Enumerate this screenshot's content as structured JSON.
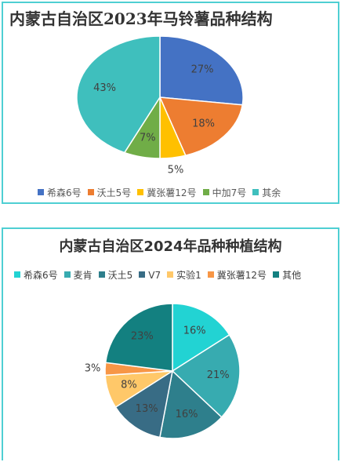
{
  "chart_data": [
    {
      "type": "pie",
      "title": "内蒙古自治区2023年马铃薯品种结构",
      "categories": [
        "希森6号",
        "沃土5号",
        "冀张薯12号",
        "中加7号",
        "其余"
      ],
      "values": [
        27,
        18,
        5,
        7,
        43
      ],
      "data_labels": [
        "27%",
        "18%",
        "5%",
        "7%",
        "43%"
      ],
      "colors": [
        "#4472c4",
        "#ed7d31",
        "#ffc000",
        "#70ad47",
        "#3fbfbd"
      ],
      "legend": "bottom"
    },
    {
      "type": "pie",
      "title": "内蒙古自治区2024年品种种植结构",
      "categories": [
        "希森6号",
        "麦肯",
        "沃土5",
        "V7",
        "实验1",
        "冀张薯12号",
        "其他"
      ],
      "values": [
        16,
        21,
        16,
        13,
        8,
        3,
        23
      ],
      "data_labels": [
        "16%",
        "21%",
        "16%",
        "13%",
        "8%",
        "3%",
        "23%"
      ],
      "colors": [
        "#22d3d3",
        "#37abb0",
        "#2e7f8c",
        "#386c85",
        "#ffc869",
        "#f79646",
        "#138080"
      ],
      "legend": "top"
    }
  ]
}
